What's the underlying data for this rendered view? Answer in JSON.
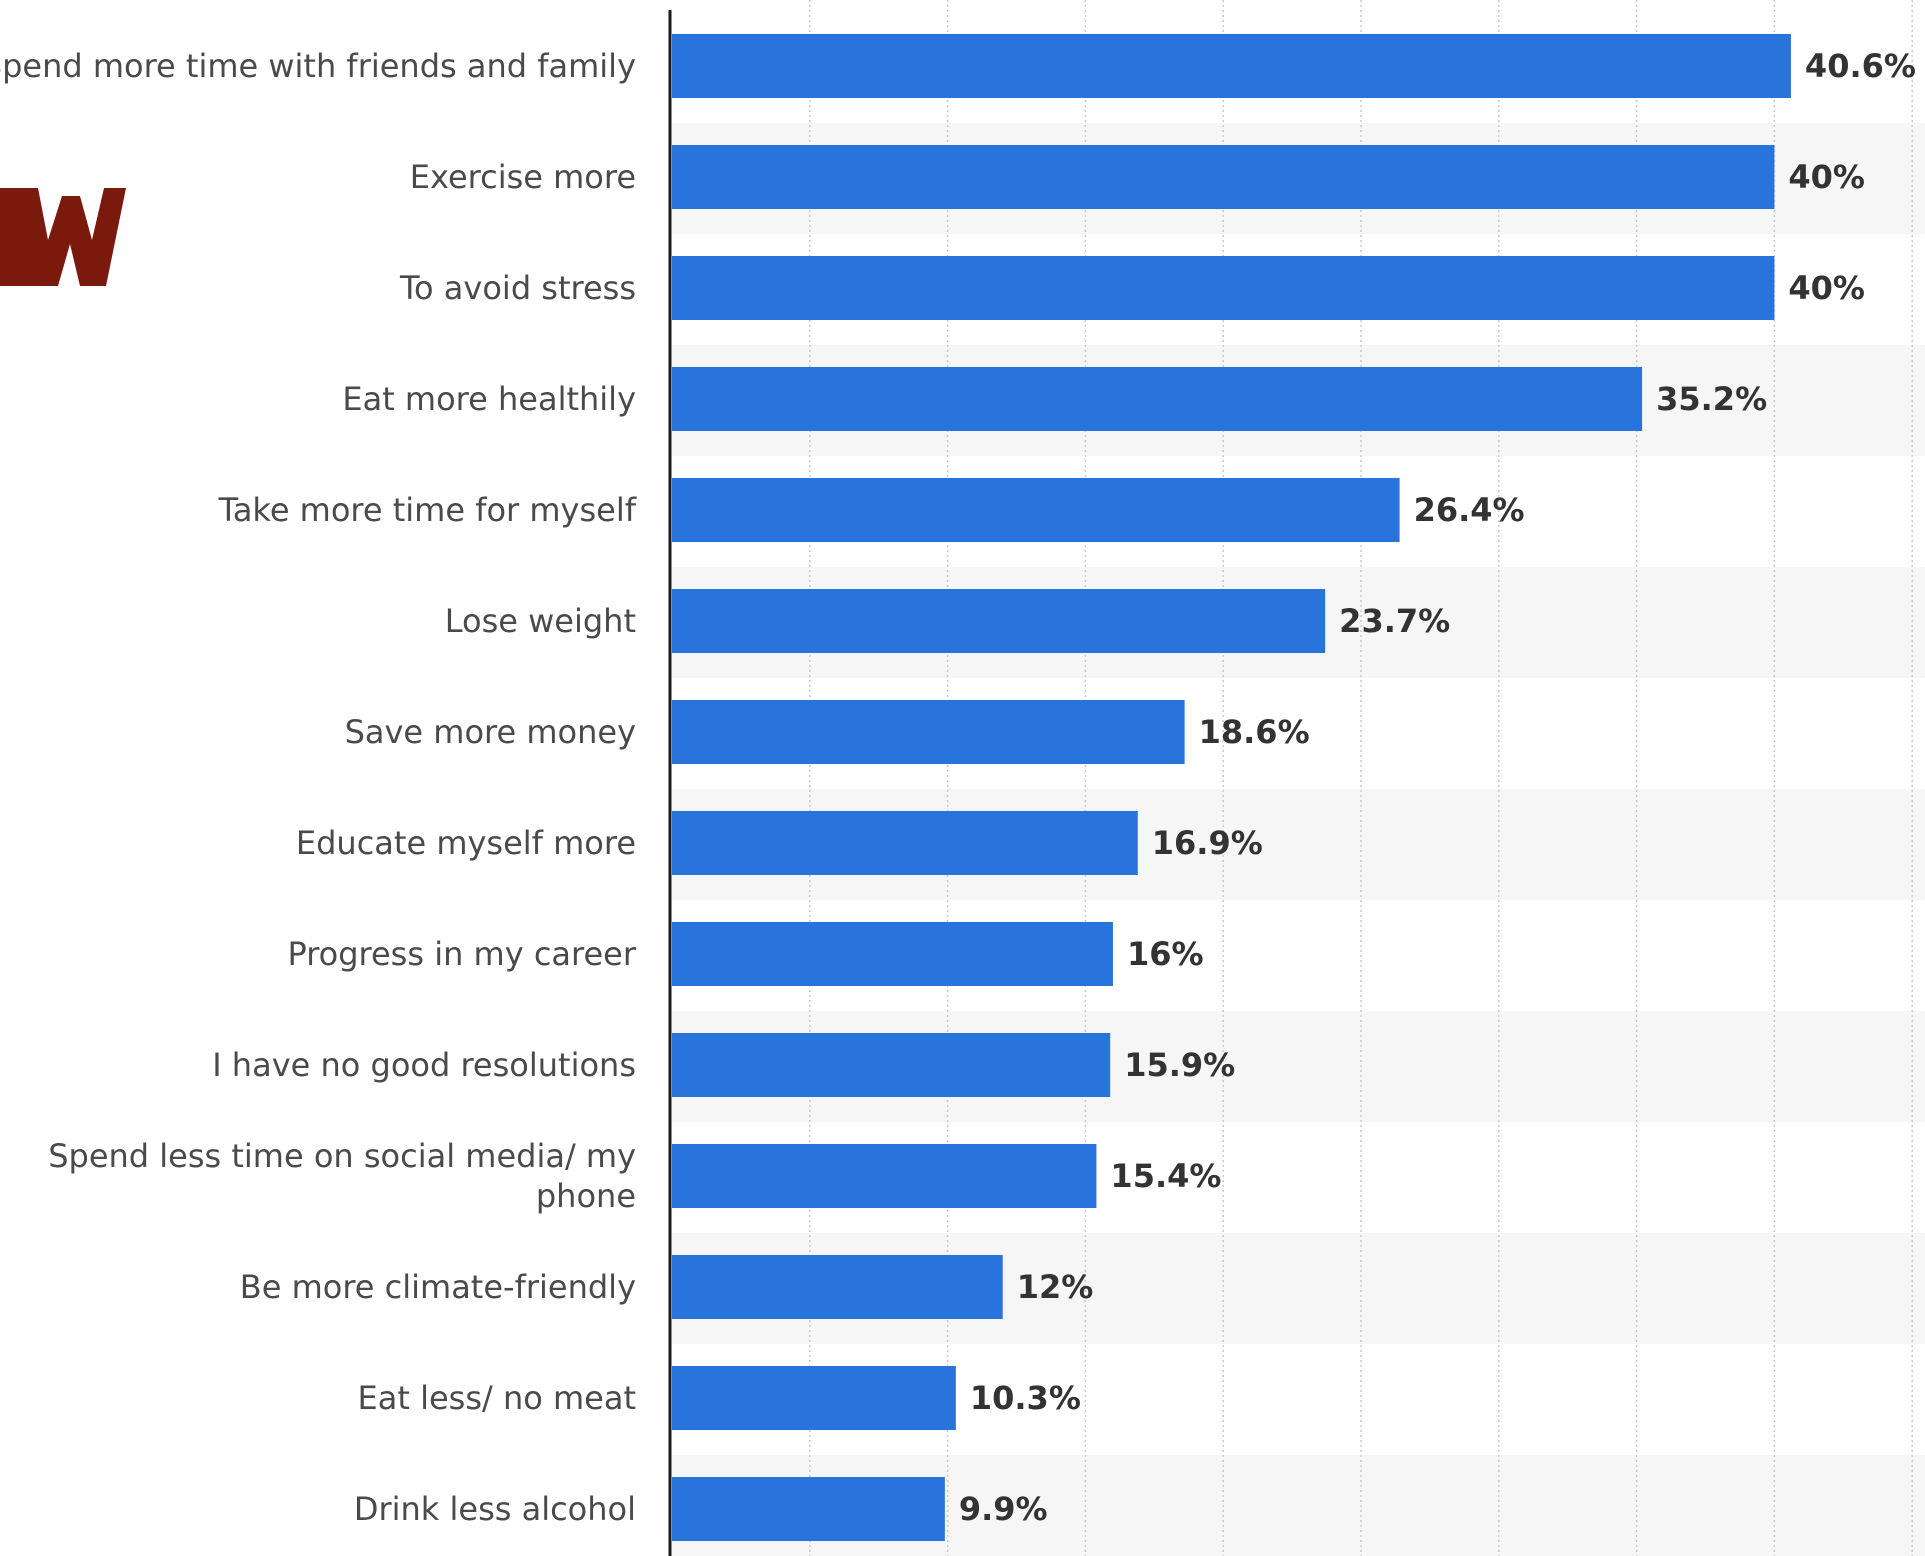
{
  "colors": {
    "bar": "#2874dc",
    "band": "#f6f6f6",
    "grid": "#c9c9c9",
    "axis": "#1a1a1a",
    "label": "#4a4a4a",
    "value_label": "#333333",
    "logo": "#7a1a0c"
  },
  "logo": {
    "text": "w",
    "icon": "logo-fragment"
  },
  "chart_data": {
    "type": "bar",
    "orientation": "horizontal",
    "unit": "%",
    "xlim": [
      0,
      50
    ],
    "grid": true,
    "categories": [
      "Spend more time with friends and family",
      "Exercise more",
      "To avoid stress",
      "Eat more healthily",
      "Take more time for myself",
      "Lose weight",
      "Save more money",
      "Educate myself more",
      "Progress in my career",
      "I have no good resolutions",
      "Spend less time on social media/ my phone",
      "Be more climate-friendly",
      "Eat less/ no meat",
      "Drink less alcohol"
    ],
    "values": [
      40.6,
      40,
      40,
      35.2,
      26.4,
      23.7,
      18.6,
      16.9,
      16,
      15.9,
      15.4,
      12,
      10.3,
      9.9
    ],
    "value_labels": [
      "40.6%",
      "40%",
      "40%",
      "35.2%",
      "26.4%",
      "23.7%",
      "18.6%",
      "16.9%",
      "16%",
      "15.9%",
      "15.4%",
      "12%",
      "10.3%",
      "9.9%"
    ],
    "category_label_lines": [
      [
        "Spend more time with friends and family"
      ],
      [
        "Exercise more"
      ],
      [
        "To avoid stress"
      ],
      [
        "Eat more healthily"
      ],
      [
        "Take more time for myself"
      ],
      [
        "Lose weight"
      ],
      [
        "Save more money"
      ],
      [
        "Educate myself more"
      ],
      [
        "Progress in my career"
      ],
      [
        "I have no good resolutions"
      ],
      [
        "Spend less time on social media/ my",
        "phone"
      ],
      [
        "Be more climate-friendly"
      ],
      [
        "Eat less/ no meat"
      ],
      [
        "Drink less alcohol"
      ]
    ]
  }
}
